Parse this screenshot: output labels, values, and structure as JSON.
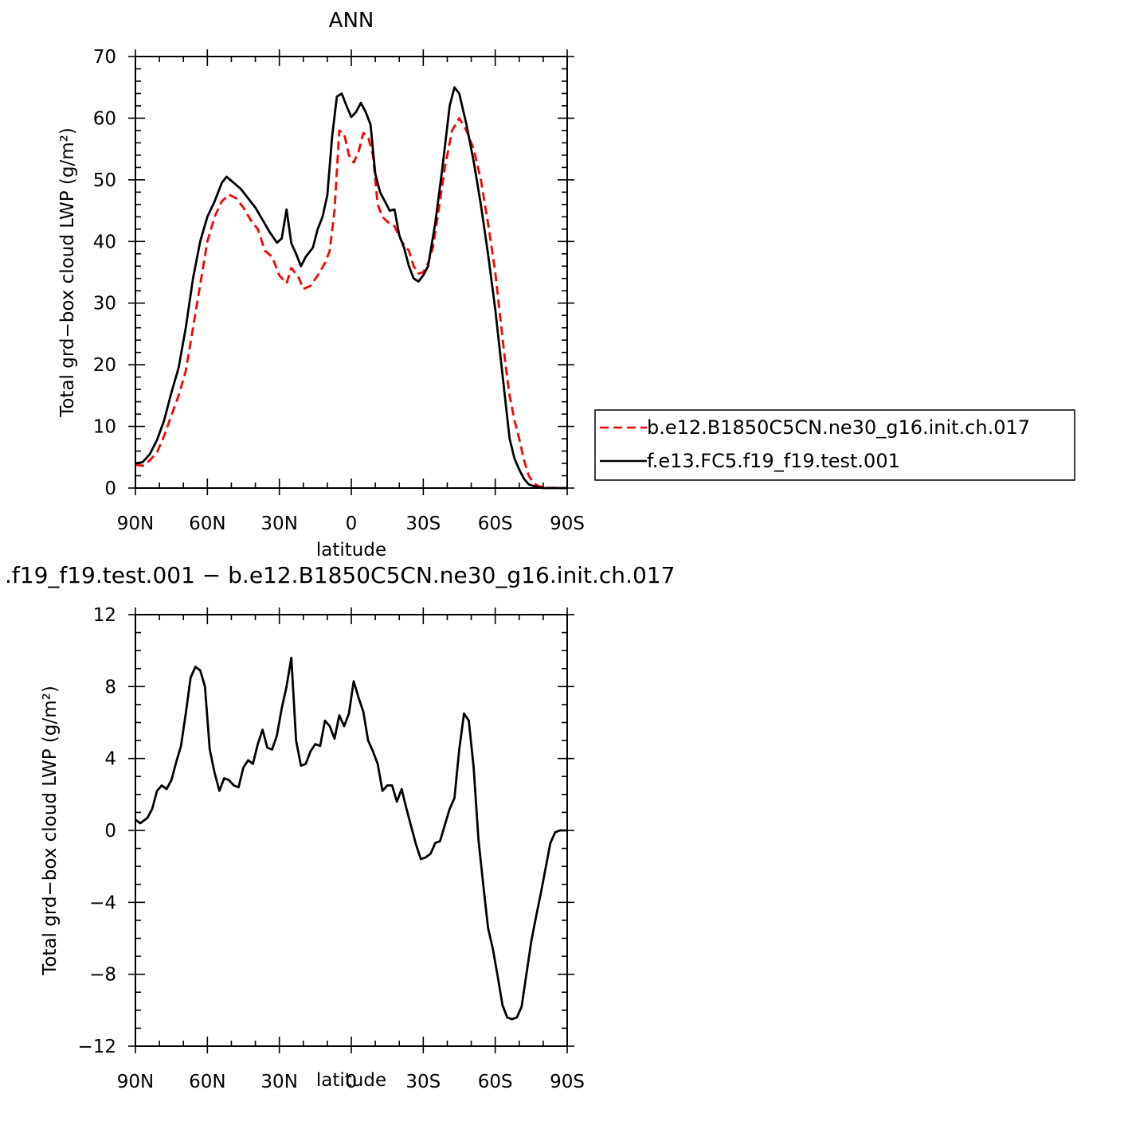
{
  "chart_data": [
    {
      "type": "line",
      "title": "ANN",
      "xlabel": "latitude",
      "ylabel": "Total grd−box cloud LWP (g/m²)",
      "xlim": [
        -90,
        90
      ],
      "ylim": [
        0,
        70
      ],
      "x_ticks": [
        {
          "value": -90,
          "label": "90N"
        },
        {
          "value": -60,
          "label": "60N"
        },
        {
          "value": -30,
          "label": "30N"
        },
        {
          "value": 0,
          "label": "0"
        },
        {
          "value": 30,
          "label": "30S"
        },
        {
          "value": 60,
          "label": "60S"
        },
        {
          "value": 90,
          "label": "90S"
        }
      ],
      "y_ticks": [
        {
          "value": 0,
          "label": "0"
        },
        {
          "value": 10,
          "label": "10"
        },
        {
          "value": 20,
          "label": "20"
        },
        {
          "value": 30,
          "label": "30"
        },
        {
          "value": 40,
          "label": "40"
        },
        {
          "value": 50,
          "label": "50"
        },
        {
          "value": 60,
          "label": "60"
        },
        {
          "value": 70,
          "label": "70"
        }
      ],
      "legend": {
        "placement": "right"
      },
      "series": [
        {
          "name": "b.e12.B1850C5CN.ne30_g16.init.ch.017",
          "color": "#ff0000",
          "dash": "dashed",
          "points": [
            [
              -90,
              3.8
            ],
            [
              -87,
              3.6
            ],
            [
              -84,
              4.5
            ],
            [
              -81,
              5.8
            ],
            [
              -78,
              8.5
            ],
            [
              -75,
              11.8
            ],
            [
              -72,
              15
            ],
            [
              -69,
              19
            ],
            [
              -66,
              26
            ],
            [
              -63,
              33
            ],
            [
              -60,
              40
            ],
            [
              -57,
              44
            ],
            [
              -54,
              46.5
            ],
            [
              -51,
              47.6
            ],
            [
              -48,
              47
            ],
            [
              -45,
              45.5
            ],
            [
              -42,
              43.5
            ],
            [
              -39,
              42
            ],
            [
              -36,
              38.5
            ],
            [
              -33,
              37.5
            ],
            [
              -30,
              34.5
            ],
            [
              -27,
              33.2
            ],
            [
              -25,
              35.7
            ],
            [
              -22,
              34.2
            ],
            [
              -20,
              32.3
            ],
            [
              -17,
              32.8
            ],
            [
              -14,
              34.5
            ],
            [
              -11,
              36.5
            ],
            [
              -9,
              38.5
            ],
            [
              -7,
              45
            ],
            [
              -5,
              58
            ],
            [
              -3,
              57.5
            ],
            [
              -1,
              54
            ],
            [
              1,
              52.8
            ],
            [
              3,
              54.5
            ],
            [
              5,
              57.6
            ],
            [
              7,
              57
            ],
            [
              9,
              54
            ],
            [
              11,
              46
            ],
            [
              13,
              44
            ],
            [
              15,
              43.2
            ],
            [
              18,
              42.5
            ],
            [
              21,
              40
            ],
            [
              24,
              38.5
            ],
            [
              26,
              36
            ],
            [
              28,
              34.8
            ],
            [
              30,
              35
            ],
            [
              32,
              36.5
            ],
            [
              34,
              39
            ],
            [
              36,
              44
            ],
            [
              39,
              52
            ],
            [
              42,
              58
            ],
            [
              45,
              60
            ],
            [
              48,
              58
            ],
            [
              51,
              55
            ],
            [
              54,
              50
            ],
            [
              57,
              43
            ],
            [
              60,
              35
            ],
            [
              62,
              28
            ],
            [
              64,
              21
            ],
            [
              66,
              15
            ],
            [
              68,
              11
            ],
            [
              70,
              8
            ],
            [
              72,
              4.5
            ],
            [
              74,
              2
            ],
            [
              76,
              0.8
            ],
            [
              78,
              0.3
            ],
            [
              82,
              0.05
            ],
            [
              90,
              0
            ]
          ]
        },
        {
          "name": "f.e13.FC5.f19_f19.test.001",
          "color": "#000000",
          "dash": "solid",
          "points": [
            [
              -90,
              4
            ],
            [
              -87,
              4.2
            ],
            [
              -84,
              5.5
            ],
            [
              -81,
              7.8
            ],
            [
              -78,
              11
            ],
            [
              -75,
              15.5
            ],
            [
              -72,
              19.5
            ],
            [
              -69,
              26
            ],
            [
              -66,
              34
            ],
            [
              -63,
              40
            ],
            [
              -60,
              44
            ],
            [
              -57,
              46.5
            ],
            [
              -54,
              49.5
            ],
            [
              -52,
              50.5
            ],
            [
              -49,
              49.5
            ],
            [
              -46,
              48.5
            ],
            [
              -43,
              47
            ],
            [
              -40,
              45.5
            ],
            [
              -37,
              43.5
            ],
            [
              -34,
              41.5
            ],
            [
              -31,
              39.8
            ],
            [
              -29,
              40.5
            ],
            [
              -27,
              45.2
            ],
            [
              -25,
              39.7
            ],
            [
              -23,
              38
            ],
            [
              -21,
              36
            ],
            [
              -19,
              37.5
            ],
            [
              -16,
              39
            ],
            [
              -14,
              42
            ],
            [
              -12,
              44
            ],
            [
              -10,
              47.5
            ],
            [
              -8,
              57
            ],
            [
              -6,
              63.5
            ],
            [
              -4,
              64
            ],
            [
              -2,
              62
            ],
            [
              0,
              60.2
            ],
            [
              2,
              61
            ],
            [
              4,
              62.5
            ],
            [
              6,
              61
            ],
            [
              8,
              59
            ],
            [
              10,
              51
            ],
            [
              12,
              48
            ],
            [
              14,
              46.5
            ],
            [
              16,
              45
            ],
            [
              18,
              45.2
            ],
            [
              20,
              41
            ],
            [
              22,
              39
            ],
            [
              24,
              36
            ],
            [
              26,
              34
            ],
            [
              28,
              33.5
            ],
            [
              30,
              34.5
            ],
            [
              32,
              36
            ],
            [
              35,
              43
            ],
            [
              38,
              52
            ],
            [
              41,
              62
            ],
            [
              43,
              65
            ],
            [
              45,
              64
            ],
            [
              48,
              59
            ],
            [
              51,
              53
            ],
            [
              54,
              46
            ],
            [
              57,
              38
            ],
            [
              60,
              29
            ],
            [
              62,
              22
            ],
            [
              64,
              15
            ],
            [
              66,
              8
            ],
            [
              68,
              4.8
            ],
            [
              70,
              3
            ],
            [
              72,
              1.5
            ],
            [
              74,
              0.6
            ],
            [
              77,
              0.2
            ],
            [
              80,
              0
            ],
            [
              90,
              0
            ]
          ]
        }
      ]
    },
    {
      "type": "line",
      "title": ".f19_f19.test.001 − b.e12.B1850C5CN.ne30_g16.init.ch.017",
      "xlabel": "latitude",
      "ylabel": "Total grd−box cloud LWP (g/m²)",
      "xlim": [
        -90,
        90
      ],
      "ylim": [
        -12,
        12
      ],
      "x_ticks": [
        {
          "value": -90,
          "label": "90N"
        },
        {
          "value": -60,
          "label": "60N"
        },
        {
          "value": -30,
          "label": "30N"
        },
        {
          "value": 0,
          "label": "0"
        },
        {
          "value": 30,
          "label": "30S"
        },
        {
          "value": 60,
          "label": "60S"
        },
        {
          "value": 90,
          "label": "90S"
        }
      ],
      "y_ticks": [
        {
          "value": -12,
          "label": "−12"
        },
        {
          "value": -8,
          "label": "−8"
        },
        {
          "value": -4,
          "label": "−4"
        },
        {
          "value": 0,
          "label": "0"
        },
        {
          "value": 4,
          "label": "4"
        },
        {
          "value": 8,
          "label": "8"
        },
        {
          "value": 12,
          "label": "12"
        }
      ],
      "series": [
        {
          "color": "#000000",
          "dash": "solid",
          "points": [
            [
              -90,
              0.6
            ],
            [
              -88,
              0.4
            ],
            [
              -85,
              0.7
            ],
            [
              -83,
              1.2
            ],
            [
              -81,
              2.2
            ],
            [
              -79,
              2.5
            ],
            [
              -77,
              2.3
            ],
            [
              -75,
              2.8
            ],
            [
              -73,
              3.8
            ],
            [
              -71,
              4.7
            ],
            [
              -69,
              6.5
            ],
            [
              -67,
              8.5
            ],
            [
              -65,
              9.1
            ],
            [
              -63,
              8.9
            ],
            [
              -61,
              8
            ],
            [
              -59,
              4.5
            ],
            [
              -57,
              3.2
            ],
            [
              -55,
              2.2
            ],
            [
              -53,
              2.9
            ],
            [
              -51,
              2.8
            ],
            [
              -49,
              2.5
            ],
            [
              -47,
              2.4
            ],
            [
              -45,
              3.5
            ],
            [
              -43,
              3.9
            ],
            [
              -41,
              3.7
            ],
            [
              -39,
              4.8
            ],
            [
              -37,
              5.6
            ],
            [
              -35,
              4.6
            ],
            [
              -33,
              4.5
            ],
            [
              -31,
              5.3
            ],
            [
              -29,
              6.8
            ],
            [
              -27,
              8
            ],
            [
              -25,
              9.6
            ],
            [
              -23,
              5
            ],
            [
              -21,
              3.6
            ],
            [
              -19,
              3.7
            ],
            [
              -17,
              4.4
            ],
            [
              -15,
              4.8
            ],
            [
              -13,
              4.7
            ],
            [
              -11,
              6.1
            ],
            [
              -9,
              5.8
            ],
            [
              -7,
              5.1
            ],
            [
              -5,
              6.4
            ],
            [
              -3,
              5.8
            ],
            [
              -1,
              6.5
            ],
            [
              1,
              8.3
            ],
            [
              3,
              7.4
            ],
            [
              5,
              6.6
            ],
            [
              7,
              5
            ],
            [
              9,
              4.4
            ],
            [
              11,
              3.7
            ],
            [
              13,
              2.2
            ],
            [
              15,
              2.5
            ],
            [
              17,
              2.5
            ],
            [
              19,
              1.6
            ],
            [
              21,
              2.3
            ],
            [
              23,
              1.2
            ],
            [
              25,
              0.2
            ],
            [
              27,
              -0.8
            ],
            [
              29,
              -1.6
            ],
            [
              31,
              -1.5
            ],
            [
              33,
              -1.3
            ],
            [
              35,
              -0.7
            ],
            [
              37,
              -0.6
            ],
            [
              39,
              0.3
            ],
            [
              41,
              1.2
            ],
            [
              43,
              1.8
            ],
            [
              45,
              4.5
            ],
            [
              47,
              6.5
            ],
            [
              49,
              6.1
            ],
            [
              51,
              3.5
            ],
            [
              53,
              -0.5
            ],
            [
              55,
              -3
            ],
            [
              57,
              -5.4
            ],
            [
              59,
              -6.6
            ],
            [
              61,
              -8.1
            ],
            [
              63,
              -9.7
            ],
            [
              65,
              -10.4
            ],
            [
              67,
              -10.5
            ],
            [
              69,
              -10.4
            ],
            [
              71,
              -9.8
            ],
            [
              73,
              -8
            ],
            [
              75,
              -6.2
            ],
            [
              77,
              -4.8
            ],
            [
              79,
              -3.5
            ],
            [
              81,
              -2.1
            ],
            [
              83,
              -0.7
            ],
            [
              85,
              -0.1
            ],
            [
              87,
              0
            ],
            [
              90,
              0
            ]
          ]
        }
      ]
    }
  ]
}
